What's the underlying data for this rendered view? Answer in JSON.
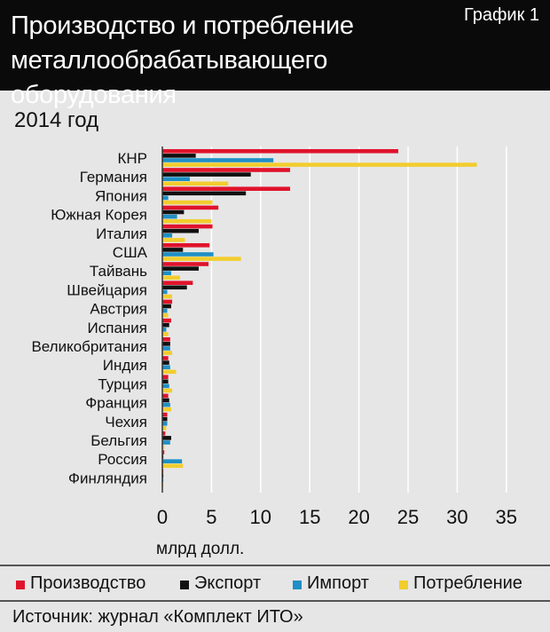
{
  "header": {
    "title_line1": "Производство и потребление",
    "title_line2": "металлообрабатывающего оборудования",
    "graph_label": "График 1"
  },
  "subtitle": "2014 год",
  "source": "Источник: журнал «Комплект ИТО»",
  "colors": {
    "production": "#e0132b",
    "export": "#111111",
    "import": "#1f8fc5",
    "consumption": "#f2cd2e"
  },
  "chart_data": {
    "type": "bar",
    "orientation": "horizontal",
    "categories": [
      "КНР",
      "Германия",
      "Япония",
      "Южная Корея",
      "Италия",
      "США",
      "Тайвань",
      "Швейцария",
      "Австрия",
      "Испания",
      "Великобритания",
      "Индия",
      "Турция",
      "Франция",
      "Чехия",
      "Бельгия",
      "Россия",
      "Финляндия"
    ],
    "series": [
      {
        "name": "Производство",
        "values": [
          24,
          13,
          13,
          5.7,
          5.1,
          4.8,
          4.7,
          3.1,
          1.0,
          0.9,
          0.8,
          0.6,
          0.6,
          0.6,
          0.5,
          0.3,
          0.2,
          0.1
        ]
      },
      {
        "name": "Экспорт",
        "values": [
          3.4,
          9,
          8.5,
          2.2,
          3.7,
          2.1,
          3.7,
          2.5,
          0.9,
          0.7,
          0.8,
          0.7,
          0.6,
          0.7,
          0.5,
          0.9,
          0.1,
          0.1
        ]
      },
      {
        "name": "Импорт",
        "values": [
          11.3,
          2.8,
          0.6,
          1.5,
          1.0,
          5.2,
          0.9,
          0.5,
          0.5,
          0.4,
          0.8,
          0.8,
          0.7,
          0.8,
          0.5,
          0.8,
          2.0,
          0.1
        ]
      },
      {
        "name": "Потребление",
        "values": [
          32,
          6.7,
          5.1,
          5.0,
          2.3,
          8.0,
          1.8,
          1.0,
          0.6,
          0.6,
          1.0,
          1.4,
          1.0,
          0.9,
          0.4,
          0.2,
          2.1,
          0.1
        ]
      }
    ],
    "xlabel": "млрд долл.",
    "x_ticks": [
      0,
      5,
      10,
      15,
      20,
      25,
      30,
      35
    ],
    "xlim": [
      0,
      35
    ],
    "grid": true,
    "legend_position": "bottom"
  }
}
